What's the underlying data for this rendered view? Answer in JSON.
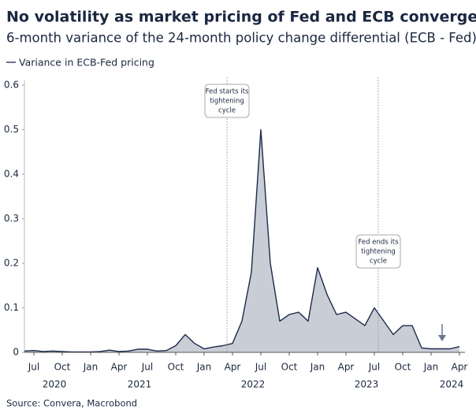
{
  "chart_data": {
    "type": "area",
    "title": "No volatility as market pricing of Fed and ECB converges",
    "subtitle": "6-month variance of the 24-month policy change differential (ECB - Fed)",
    "source": "Source: Convera, Macrobond",
    "series": [
      {
        "name": "Variance in ECB-Fed pricing",
        "color": "#1c2b4a",
        "fill": "#c9ced6",
        "values": [
          0.003,
          0.004,
          0.002,
          0.003,
          0.002,
          0.001,
          0.001,
          0.001,
          0.002,
          0.005,
          0.002,
          0.003,
          0.007,
          0.007,
          0.003,
          0.004,
          0.015,
          0.04,
          0.02,
          0.008,
          0.012,
          0.015,
          0.02,
          0.07,
          0.18,
          0.5,
          0.2,
          0.07,
          0.085,
          0.09,
          0.07,
          0.19,
          0.13,
          0.085,
          0.09,
          0.075,
          0.06,
          0.1,
          0.07,
          0.04,
          0.06,
          0.06,
          0.01,
          0.008,
          0.008,
          0.008,
          0.013
        ]
      }
    ],
    "x": [
      "2020-06",
      "2020-07",
      "2020-08",
      "2020-09",
      "2020-10",
      "2020-11",
      "2020-12",
      "2021-01",
      "2021-02",
      "2021-03",
      "2021-04",
      "2021-05",
      "2021-06",
      "2021-07",
      "2021-08",
      "2021-09",
      "2021-10",
      "2021-11",
      "2021-12",
      "2022-01",
      "2022-02",
      "2022-03",
      "2022-04",
      "2022-05",
      "2022-06",
      "2022-07",
      "2022-08",
      "2022-09",
      "2022-10",
      "2022-11",
      "2022-12",
      "2023-01",
      "2023-02",
      "2023-03",
      "2023-04",
      "2023-05",
      "2023-06",
      "2023-07",
      "2023-08",
      "2023-09",
      "2023-10",
      "2023-11",
      "2023-12",
      "2024-01",
      "2024-02",
      "2024-03",
      "2024-04"
    ],
    "xlim": [
      "2020-06",
      "2024-05"
    ],
    "xticks": [
      {
        "value": "2020-07",
        "label": "Jul"
      },
      {
        "value": "2020-10",
        "label": "Oct"
      },
      {
        "value": "2021-01",
        "label": "Jan"
      },
      {
        "value": "2021-04",
        "label": "Apr"
      },
      {
        "value": "2021-07",
        "label": "Jul"
      },
      {
        "value": "2021-10",
        "label": "Oct"
      },
      {
        "value": "2022-01",
        "label": "Jan"
      },
      {
        "value": "2022-04",
        "label": "Apr"
      },
      {
        "value": "2022-07",
        "label": "Jul"
      },
      {
        "value": "2022-10",
        "label": "Oct"
      },
      {
        "value": "2023-01",
        "label": "Jan"
      },
      {
        "value": "2023-04",
        "label": "Apr"
      },
      {
        "value": "2023-07",
        "label": "Jul"
      },
      {
        "value": "2023-10",
        "label": "Oct"
      },
      {
        "value": "2024-01",
        "label": "Jan"
      },
      {
        "value": "2024-04",
        "label": "Apr"
      }
    ],
    "x_groups": [
      2020,
      2021,
      2022,
      2023,
      2024
    ],
    "ylim": [
      0,
      0.6
    ],
    "yticks": [
      0,
      {
        "value": 0.1,
        "label": "0.1"
      },
      {
        "value": 0.2,
        "label": "0.2"
      },
      {
        "value": 0.3,
        "label": "0.3"
      },
      {
        "value": 0.4,
        "label": "0.4"
      },
      {
        "value": 0.5,
        "label": "0.5"
      },
      {
        "value": 0.6,
        "label": "0.6"
      }
    ],
    "annotations": [
      {
        "x": "2022-03",
        "lines": [
          "Fed starts its",
          "tightening",
          "cycle"
        ]
      },
      {
        "x": "2023-07",
        "lines": [
          "Fed ends its",
          "tightening",
          "cycle"
        ]
      }
    ]
  }
}
